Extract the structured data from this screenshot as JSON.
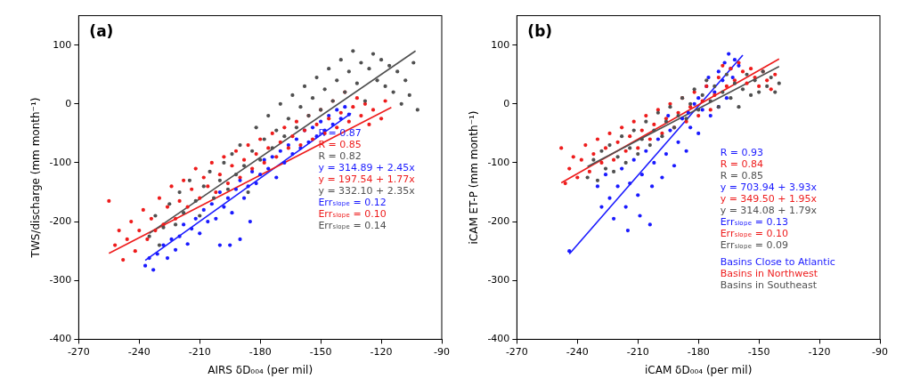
{
  "chart_data": [
    {
      "type": "scatter",
      "title": "(a)",
      "xlabel": "AIRS δD₀₀₄ (per mil)",
      "ylabel": "TWS/discharge (mm month⁻¹)",
      "xlim": [
        -270,
        -90
      ],
      "xticks": [
        -270,
        -240,
        -210,
        -180,
        -150,
        -120,
        -90
      ],
      "ylim": [
        -400,
        150
      ],
      "yticks": [
        -400,
        -300,
        -200,
        -100,
        0,
        100
      ],
      "grid": false,
      "annotations": [
        {
          "text": "R = 0.87",
          "color": "#1a1aff"
        },
        {
          "text": "R = 0.85",
          "color": "#ee1c1c"
        },
        {
          "text": "R = 0.82",
          "color": "#505050"
        },
        {
          "text": "y = 314.89 + 2.45x",
          "color": "#1a1aff"
        },
        {
          "text": "y = 197.54 + 1.77x",
          "color": "#ee1c1c"
        },
        {
          "text": "y = 332.10 + 2.35x",
          "color": "#505050"
        },
        {
          "text": "Errₛₗₒₚₑ = 0.12",
          "color": "#1a1aff"
        },
        {
          "text": "Errₛₗₒₚₑ = 0.10",
          "color": "#ee1c1c"
        },
        {
          "text": "Errₛₗₒₚₑ = 0.14",
          "color": "#505050"
        }
      ],
      "series": [
        {
          "type": "scatter",
          "marker": "circle",
          "color": "#505050",
          "x": [
            -235,
            -232,
            -230,
            -228,
            -225,
            -222,
            -220,
            -218,
            -215,
            -212,
            -210,
            -208,
            -205,
            -203,
            -200,
            -198,
            -196,
            -194,
            -192,
            -190,
            -188,
            -186,
            -184,
            -182,
            -180,
            -178,
            -176,
            -174,
            -172,
            -170,
            -168,
            -166,
            -164,
            -162,
            -160,
            -158,
            -156,
            -154,
            -152,
            -150,
            -148,
            -146,
            -144,
            -142,
            -140,
            -138,
            -136,
            -134,
            -132,
            -130,
            -128,
            -126,
            -124,
            -122,
            -120,
            -118,
            -116,
            -114,
            -112,
            -110,
            -108,
            -106,
            -104,
            -102
          ],
          "values": [
            -225,
            -190,
            -240,
            -210,
            -170,
            -205,
            -150,
            -185,
            -130,
            -165,
            -190,
            -140,
            -115,
            -160,
            -130,
            -100,
            -145,
            -85,
            -120,
            -70,
            -105,
            -150,
            -80,
            -40,
            -95,
            -60,
            -20,
            -75,
            -45,
            0,
            -55,
            -25,
            15,
            -40,
            -5,
            30,
            -20,
            10,
            45,
            -10,
            25,
            60,
            5,
            40,
            75,
            20,
            55,
            90,
            35,
            70,
            5,
            60,
            85,
            40,
            75,
            30,
            65,
            20,
            55,
            0,
            40,
            15,
            70,
            -10
          ]
        },
        {
          "type": "scatter",
          "marker": "circle",
          "color": "#ee1c1c",
          "x": [
            -255,
            -252,
            -250,
            -248,
            -246,
            -244,
            -242,
            -240,
            -238,
            -236,
            -234,
            -232,
            -230,
            -228,
            -226,
            -224,
            -222,
            -220,
            -218,
            -216,
            -214,
            -212,
            -210,
            -208,
            -206,
            -204,
            -202,
            -200,
            -198,
            -196,
            -194,
            -192,
            -190,
            -188,
            -186,
            -184,
            -182,
            -180,
            -178,
            -176,
            -174,
            -172,
            -170,
            -168,
            -166,
            -164,
            -162,
            -160,
            -158,
            -156,
            -154,
            -152,
            -150,
            -148,
            -146,
            -144,
            -142,
            -140,
            -138,
            -136,
            -134,
            -132,
            -130,
            -128,
            -126,
            -124,
            -120,
            -118
          ],
          "values": [
            -165,
            -240,
            -215,
            -265,
            -230,
            -200,
            -250,
            -215,
            -180,
            -230,
            -195,
            -215,
            -160,
            -205,
            -175,
            -140,
            -195,
            -165,
            -130,
            -175,
            -145,
            -110,
            -160,
            -125,
            -140,
            -100,
            -150,
            -120,
            -90,
            -135,
            -105,
            -80,
            -125,
            -95,
            -70,
            -110,
            -85,
            -60,
            -100,
            -75,
            -50,
            -90,
            -65,
            -40,
            -75,
            -55,
            -30,
            -70,
            -45,
            -20,
            -60,
            -35,
            -10,
            -50,
            -25,
            5,
            -40,
            -15,
            20,
            -30,
            -5,
            10,
            -20,
            0,
            -35,
            -10,
            -25,
            5
          ]
        },
        {
          "type": "scatter",
          "marker": "circle",
          "color": "#1a1aff",
          "x": [
            -237,
            -235,
            -233,
            -231,
            -228,
            -226,
            -224,
            -222,
            -220,
            -218,
            -216,
            -214,
            -212,
            -210,
            -208,
            -206,
            -204,
            -202,
            -200,
            -198,
            -196,
            -194,
            -192,
            -190,
            -188,
            -186,
            -184,
            -182,
            -180,
            -178,
            -176,
            -174,
            -172,
            -170,
            -168,
            -166,
            -164,
            -162,
            -160,
            -158,
            -156,
            -154,
            -152,
            -150,
            -148,
            -146,
            -144,
            -142,
            -140,
            -138,
            -136,
            -195,
            -190,
            -200,
            -185
          ],
          "values": [
            -275,
            -262,
            -282,
            -255,
            -240,
            -262,
            -230,
            -248,
            -225,
            -205,
            -238,
            -212,
            -195,
            -220,
            -180,
            -200,
            -170,
            -195,
            -150,
            -175,
            -160,
            -185,
            -145,
            -130,
            -160,
            -140,
            -115,
            -135,
            -120,
            -95,
            -110,
            -90,
            -125,
            -80,
            -100,
            -70,
            -85,
            -60,
            -75,
            -45,
            -65,
            -40,
            -55,
            -30,
            -45,
            -20,
            -35,
            -10,
            -25,
            -5,
            -18,
            -240,
            -230,
            -240,
            -200
          ]
        },
        {
          "type": "line",
          "line_style": "solid",
          "color": "#505050",
          "x": [
            -235,
            -103
          ],
          "values": [
            -220.15,
            90.05
          ]
        },
        {
          "type": "line",
          "line_style": "solid",
          "color": "#ee1c1c",
          "x": [
            -255,
            -115
          ],
          "values": [
            -253.81,
            -6.01
          ]
        },
        {
          "type": "line",
          "line_style": "solid",
          "color": "#1a1aff",
          "x": [
            -237,
            -135
          ],
          "values": [
            -265.76,
            -15.86
          ]
        }
      ]
    },
    {
      "type": "scatter",
      "title": "(b)",
      "xlabel": "iCAM δD₀₀₄ (per mil)",
      "ylabel": "iCAM ET-P (mm month⁻¹)",
      "xlim": [
        -270,
        -90
      ],
      "xticks": [
        -270,
        -240,
        -210,
        -180,
        -150,
        -120,
        -90
      ],
      "ylim": [
        -400,
        150
      ],
      "yticks": [
        -400,
        -300,
        -200,
        -100,
        0,
        100
      ],
      "grid": false,
      "legend": "right",
      "annotations": [
        {
          "text": "R = 0.93",
          "color": "#1a1aff"
        },
        {
          "text": "R = 0.84",
          "color": "#ee1c1c"
        },
        {
          "text": "R = 0.85",
          "color": "#505050"
        },
        {
          "text": "y = 703.94 + 3.93x",
          "color": "#1a1aff"
        },
        {
          "text": "y = 349.50 + 1.95x",
          "color": "#ee1c1c"
        },
        {
          "text": "y = 314.08 + 1.79x",
          "color": "#505050"
        },
        {
          "text": "Errₛₗₒₚₑ = 0.13",
          "color": "#1a1aff"
        },
        {
          "text": "Errₛₗₒₚₑ = 0.10",
          "color": "#ee1c1c"
        },
        {
          "text": "Errₛₗₒₚₑ = 0.09",
          "color": "#505050"
        }
      ],
      "series": [
        {
          "name": "Basins in Southeast",
          "type": "scatter",
          "marker": "circle",
          "color": "#505050",
          "x": [
            -235,
            -232,
            -230,
            -228,
            -226,
            -224,
            -222,
            -220,
            -218,
            -216,
            -214,
            -212,
            -210,
            -208,
            -206,
            -204,
            -202,
            -200,
            -198,
            -196,
            -194,
            -192,
            -190,
            -188,
            -186,
            -184,
            -182,
            -180,
            -178,
            -176,
            -174,
            -172,
            -170,
            -168,
            -166,
            -164,
            -162,
            -160,
            -158,
            -156,
            -154,
            -152,
            -150,
            -148,
            -146,
            -144,
            -142,
            -140
          ],
          "values": [
            -125,
            -95,
            -130,
            -80,
            -110,
            -70,
            -115,
            -90,
            -55,
            -100,
            -75,
            -45,
            -85,
            -60,
            -30,
            -70,
            -45,
            -15,
            -55,
            -30,
            -5,
            -40,
            -20,
            10,
            -25,
            0,
            25,
            -10,
            15,
            40,
            5,
            30,
            -5,
            20,
            50,
            10,
            35,
            -5,
            25,
            50,
            15,
            40,
            20,
            55,
            30,
            45,
            20,
            35
          ]
        },
        {
          "name": "Basins in Northwest",
          "type": "scatter",
          "marker": "circle",
          "color": "#ee1c1c",
          "x": [
            -248,
            -246,
            -244,
            -242,
            -240,
            -238,
            -236,
            -234,
            -232,
            -230,
            -228,
            -226,
            -224,
            -222,
            -220,
            -218,
            -216,
            -214,
            -212,
            -210,
            -208,
            -206,
            -204,
            -202,
            -200,
            -198,
            -196,
            -194,
            -192,
            -190,
            -188,
            -186,
            -184,
            -182,
            -180,
            -178,
            -176,
            -174,
            -172,
            -170,
            -168,
            -166,
            -164,
            -162,
            -160,
            -158,
            -156,
            -154,
            -152,
            -150,
            -148,
            -146,
            -144,
            -142
          ],
          "values": [
            -75,
            -135,
            -110,
            -90,
            -125,
            -95,
            -70,
            -115,
            -85,
            -60,
            -100,
            -75,
            -50,
            -95,
            -65,
            -40,
            -80,
            -55,
            -30,
            -75,
            -45,
            -20,
            -60,
            -35,
            -10,
            -50,
            -25,
            0,
            -40,
            -15,
            10,
            -30,
            -5,
            20,
            -20,
            5,
            30,
            -10,
            15,
            45,
            65,
            30,
            60,
            40,
            70,
            55,
            35,
            60,
            45,
            30,
            55,
            40,
            25,
            50
          ]
        },
        {
          "name": "Basins Close to Atlantic",
          "type": "scatter",
          "marker": "circle",
          "color": "#1a1aff",
          "x": [
            -244,
            -230,
            -228,
            -226,
            -224,
            -222,
            -220,
            -218,
            -216,
            -214,
            -212,
            -210,
            -208,
            -206,
            -204,
            -203,
            -202,
            -200,
            -198,
            -196,
            -194,
            -192,
            -190,
            -188,
            -186,
            -184,
            -182,
            -180,
            -178,
            -176,
            -174,
            -172,
            -170,
            -168,
            -167,
            -166,
            -165,
            -164,
            -163,
            -162,
            -160,
            -170,
            -175,
            -180,
            -185,
            -195,
            -215,
            -209
          ],
          "values": [
            -250,
            -140,
            -175,
            -120,
            -160,
            -195,
            -140,
            -110,
            -175,
            -135,
            -95,
            -155,
            -120,
            -80,
            -205,
            -140,
            -100,
            -60,
            -125,
            -85,
            -45,
            -105,
            -65,
            -25,
            -80,
            -40,
            0,
            -50,
            -10,
            30,
            -20,
            20,
            55,
            40,
            70,
            10,
            85,
            60,
            45,
            75,
            65,
            -5,
            45,
            10,
            -15,
            -20,
            -215,
            -190
          ]
        },
        {
          "type": "line",
          "line_style": "solid",
          "color": "#505050",
          "x": [
            -235,
            -140
          ],
          "values": [
            -106.57,
            63.48
          ]
        },
        {
          "type": "line",
          "line_style": "solid",
          "color": "#ee1c1c",
          "x": [
            -248,
            -140
          ],
          "values": [
            -134.1,
            76.5
          ]
        },
        {
          "type": "line",
          "line_style": "solid",
          "color": "#1a1aff",
          "x": [
            -244,
            -158
          ],
          "values": [
            -254.98,
            83.0
          ]
        }
      ]
    }
  ]
}
